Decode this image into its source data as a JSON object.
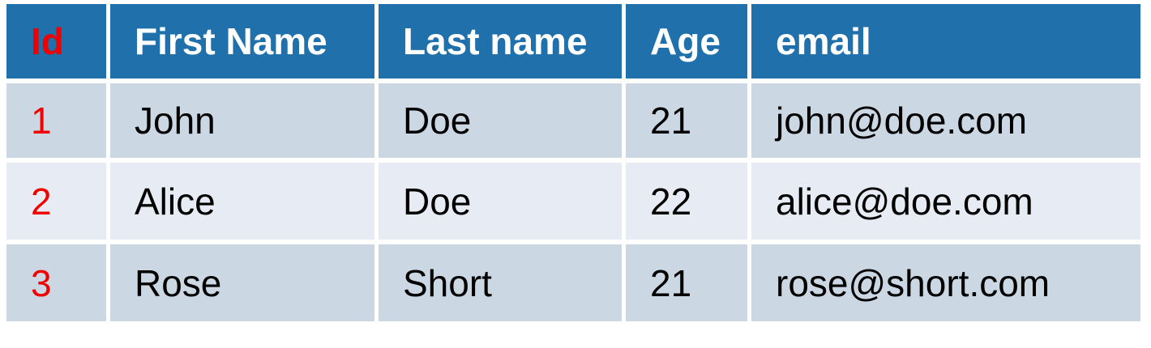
{
  "table": {
    "columns": [
      "Id",
      "First Name",
      "Last name",
      "Age",
      "email"
    ],
    "rows": [
      [
        "1",
        "John",
        "Doe",
        "21",
        "john@doe.com"
      ],
      [
        "2",
        "Alice",
        "Doe",
        "22",
        "alice@doe.com"
      ],
      [
        "3",
        "Rose",
        "Short",
        "21",
        "rose@short.com"
      ]
    ]
  },
  "colors": {
    "header_bg": "#1f70ab",
    "row_dark": "#ccd7e4",
    "row_light": "#e7ebf3",
    "id_text": "#f10000"
  }
}
